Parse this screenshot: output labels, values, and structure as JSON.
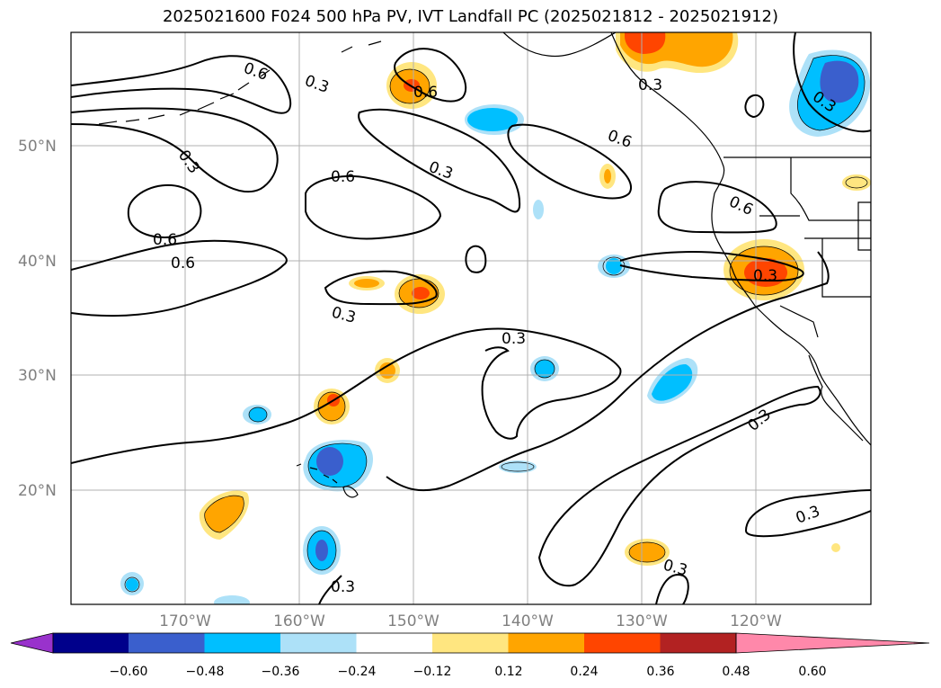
{
  "title": "2025021600 F024 500 hPa PV, IVT Landfall PC (2025021812 - 2025021912)",
  "map": {
    "lon_range": [
      -180,
      -110
    ],
    "lat_range": [
      10,
      60
    ],
    "lat_labels": [
      "50°N",
      "40°N",
      "30°N",
      "20°N"
    ],
    "lon_labels": [
      "170°W",
      "160°W",
      "150°W",
      "140°W",
      "130°W",
      "120°W"
    ],
    "contour_labels": [
      "0.6",
      "0.3",
      "0.6",
      "0.3",
      "0.6",
      "0.3",
      "0.6",
      "0.6",
      "0.6",
      "0.3",
      "0.3",
      "0.3",
      "0.3",
      "0.3",
      "0.3",
      "0.6",
      "0.3",
      "0.3",
      "0.3",
      "0.3"
    ]
  },
  "colorbar": {
    "colors": [
      "#9932CC",
      "#00008B",
      "#3A5FCD",
      "#00BFFF",
      "#ADE1F8",
      "#FFFFFF",
      "#FFE680",
      "#FFA500",
      "#FF4500",
      "#B22222",
      "#FF88AA"
    ],
    "tick_labels": [
      "−0.60",
      "−0.48",
      "−0.36",
      "−0.24",
      "−0.12",
      "0.12",
      "0.24",
      "0.36",
      "0.48",
      "0.60"
    ],
    "levels": [
      -0.6,
      -0.48,
      -0.36,
      -0.24,
      -0.12,
      0.12,
      0.24,
      0.36,
      0.48,
      0.6
    ]
  }
}
